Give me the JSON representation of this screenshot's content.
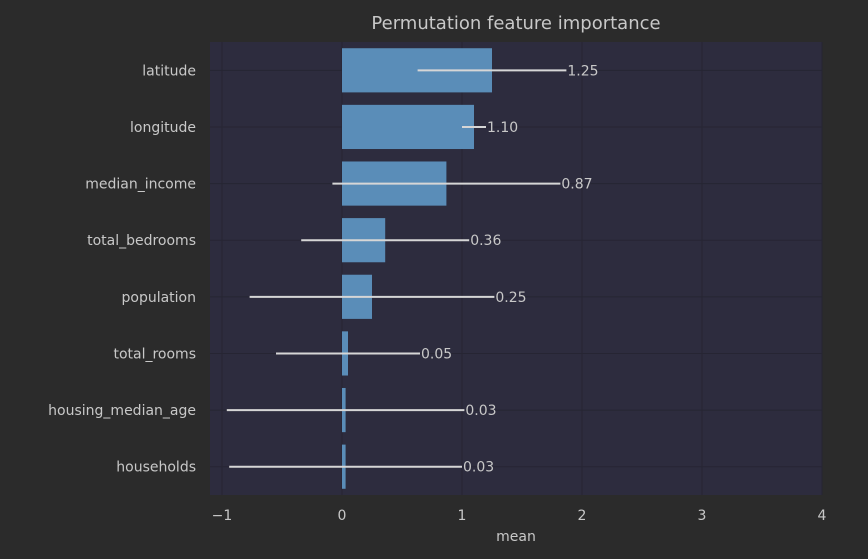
{
  "chart_data": {
    "type": "bar",
    "orientation": "horizontal",
    "title": "Permutation feature importance",
    "xlabel": "mean",
    "ylabel": "",
    "xlim": [
      -1.1,
      4
    ],
    "xticks": [
      -1,
      0,
      1,
      2,
      3,
      4
    ],
    "xtick_labels": [
      "−1",
      "0",
      "1",
      "2",
      "3",
      "4"
    ],
    "grid": true,
    "categories": [
      "latitude",
      "longitude",
      "median_income",
      "total_bedrooms",
      "population",
      "total_rooms",
      "housing_median_age",
      "households"
    ],
    "values": [
      1.25,
      1.1,
      0.87,
      0.36,
      0.25,
      0.05,
      0.03,
      0.03
    ],
    "value_labels": [
      "1.25",
      "1.10",
      "0.87",
      "0.36",
      "0.25",
      "0.05",
      "0.03",
      "0.03"
    ],
    "errors": [
      0.62,
      0.1,
      0.95,
      0.7,
      1.02,
      0.6,
      0.99,
      0.97
    ],
    "colors": {
      "background": "#2b2b2b",
      "plot_area": "#2d2c3e",
      "bar": "#5a8db8",
      "error_bar": "#d6d6d6",
      "text": "#c8c8c8",
      "grid": "#262533"
    }
  }
}
